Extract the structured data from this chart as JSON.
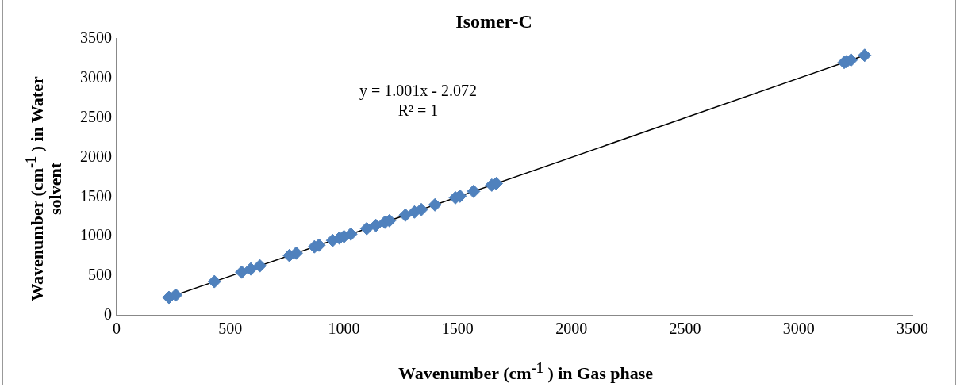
{
  "chart_data": {
    "type": "scatter",
    "title": "Isomer-C",
    "xlabel": "Wavenumber (cm$^{-1}$ ) in Gas phase",
    "ylabel": "Wavenumber (cm$^{-1}$ ) in Water solvent",
    "annotations": [
      "y = 1.001x - 2.072",
      "R² = 1"
    ],
    "xlim": [
      0,
      3500
    ],
    "xticks": [
      0,
      500,
      1000,
      1500,
      2000,
      2500,
      3000,
      3500
    ],
    "ylim": [
      0,
      3500
    ],
    "yticks": [
      0,
      500,
      1000,
      1500,
      2000,
      2500,
      3000,
      3500
    ],
    "grid": false,
    "legend": false,
    "series": [
      {
        "color": "#4f81bd",
        "marker": "diamond",
        "x": [
          230,
          260,
          430,
          550,
          590,
          630,
          760,
          790,
          870,
          890,
          950,
          980,
          1000,
          1030,
          1100,
          1140,
          1180,
          1200,
          1270,
          1310,
          1340,
          1400,
          1490,
          1510,
          1570,
          1650,
          1670,
          3200,
          3210,
          3230,
          3290
        ],
        "values": [
          230,
          260,
          430,
          550,
          590,
          630,
          760,
          790,
          870,
          890,
          950,
          980,
          1000,
          1030,
          1100,
          1140,
          1180,
          1200,
          1270,
          1310,
          1340,
          1400,
          1490,
          1510,
          1570,
          1650,
          1670,
          3200,
          3210,
          3230,
          3290
        ]
      },
      {
        "type": "line",
        "color": "#000000",
        "marker": "none",
        "x": [
          230,
          3290
        ],
        "values": [
          230,
          3290
        ]
      }
    ]
  }
}
